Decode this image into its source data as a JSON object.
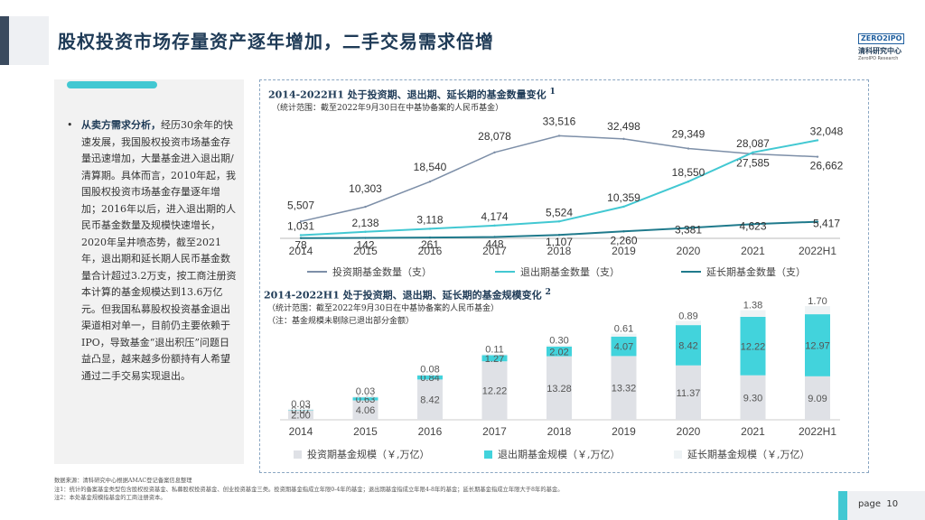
{
  "page": {
    "title": "股权投资市场存量资产逐年增加，二手交易需求倍增",
    "page_label": "page",
    "page_number": "10"
  },
  "logo": {
    "box_text": "ZERO2IPO",
    "cn": "清科研究中心",
    "en": "ZeroIPO Research"
  },
  "sidebar": {
    "bullet": "•",
    "lead": "从卖方需求分析，",
    "body": "经历30余年的快速发展，我国股权投资市场基金存量迅速增加，大量基金进入退出期/清算期。具体而言，2010年起，我国股权投资市场基金存量逐年增加；2016年以后，进入退出期的人民币基金数量及规模快速增长，2020年呈井喷态势，截至2021年，退出期和延长期人民币基金数量合计超过3.2万支，按工商注册资本计算的基金规模达到13.6万亿元。但我国私募股权投资基金退出渠道相对单一，目前仍主要依赖于IPO，导致基金“退出积压”问题日益凸显，越来越多份额持有人希望通过二手交易实现退出。"
  },
  "chart1_header": {
    "title": "2014-2022H1 处于投资期、退出期、延长期的基金数量变化",
    "note_marker": "1",
    "subtitle": "（统计范围：截至2022年9月30日在中基协备案的人民币基金）"
  },
  "chart2_header": {
    "title": "2014-2022H1 处于投资期、退出期、延长期的基金规模变化",
    "note_marker": "2",
    "subtitle": "（统计范围：截至2022年9月30日在中基协备案的人民币基金）",
    "subtitle2": "（注：基金规模未剔除已退出部分金额）"
  },
  "chart_data": [
    {
      "type": "line",
      "x": [
        "2014",
        "2015",
        "2016",
        "2017",
        "2018",
        "2019",
        "2020",
        "2021",
        "2022H1"
      ],
      "series": [
        {
          "name": "投资期基金数量（支）",
          "values": [
            5507,
            10303,
            18540,
            28078,
            33516,
            32498,
            29349,
            27585,
            26662
          ],
          "labels": [
            "5,507",
            "10,303",
            "18,540",
            "28,078",
            "33,516",
            "32,498",
            "29,349",
            "27,585",
            "26,662"
          ],
          "color": "#7d8fa8"
        },
        {
          "name": "退出期基金数量（支）",
          "values": [
            1031,
            2138,
            3118,
            4174,
            5524,
            10359,
            18550,
            28087,
            32048
          ],
          "labels": [
            "1,031",
            "2,138",
            "3,118",
            "4,174",
            "5,524",
            "10,359",
            "18,550",
            "28,087",
            "32,048"
          ],
          "color": "#42c8d2"
        },
        {
          "name": "延长期基金数量（支）",
          "values": [
            78,
            142,
            261,
            448,
            1107,
            2260,
            3381,
            4623,
            5417
          ],
          "labels": [
            "78",
            "142",
            "261",
            "448",
            "1,107",
            "2,260",
            "3,381",
            "4,623",
            "5,417"
          ],
          "color": "#1f7a8c"
        }
      ],
      "ylim": [
        0,
        36000
      ],
      "grid": false,
      "legend": "bottom"
    },
    {
      "type": "bar",
      "stacked": true,
      "categories": [
        "2014",
        "2015",
        "2016",
        "2017",
        "2018",
        "2019",
        "2020",
        "2021",
        "2022H1"
      ],
      "series": [
        {
          "name": "投资期基金规模（￥,万亿）",
          "values": [
            2.0,
            4.06,
            8.42,
            12.22,
            13.28,
            13.32,
            11.37,
            9.3,
            9.09
          ],
          "labels": [
            "2.00",
            "4.06",
            "8.42",
            "12.22",
            "13.28",
            "13.32",
            "11.37",
            "9.30",
            "9.09"
          ],
          "color": "#dfe1e6"
        },
        {
          "name": "退出期基金规模（￥,万亿）",
          "values": [
            0.07,
            0.63,
            0.84,
            1.27,
            2.02,
            4.07,
            8.42,
            12.22,
            12.97
          ],
          "labels": [
            "0.07",
            "0.63",
            "0.84",
            "1.27",
            "2.02",
            "4.07",
            "8.42",
            "12.22",
            "12.97"
          ],
          "color": "#42d3dc"
        },
        {
          "name": "延长期基金规模（￥,万亿）",
          "values": [
            0.03,
            0.03,
            0.08,
            0.11,
            0.3,
            0.61,
            0.89,
            1.38,
            1.7
          ],
          "labels": [
            "0.03",
            "0.03",
            "0.08",
            "0.11",
            "0.30",
            "0.61",
            "0.89",
            "1.38",
            "1.70"
          ],
          "color": "#eef3f5"
        }
      ],
      "ylim": [
        0,
        24
      ],
      "grid": false,
      "legend": "bottom"
    }
  ],
  "footnotes": {
    "source": "数据来源：清科研究中心根据AMAC登记备案信息整理",
    "note1": "注1：统计的备案基金类型包含股权投资基金、私募股权投资基金、创业投资基金三类。投资期基金指成立年限0-4年的基金；退出期基金指成立年限4-8年的基金；延长期基金指成立年限大于8年的基金。",
    "note2": "注2：本处基金规模指基金的工商注册资本。"
  },
  "colors": {
    "title": "#1f3b57",
    "accent": "#42c8d2"
  }
}
